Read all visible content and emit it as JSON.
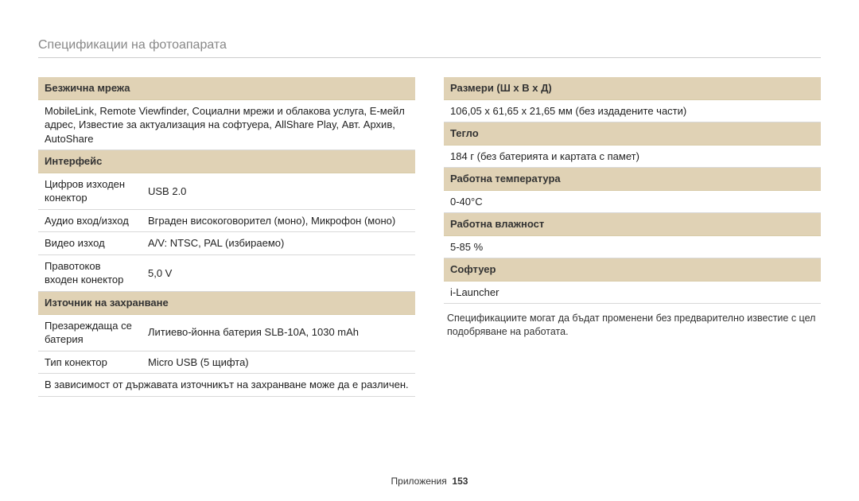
{
  "page_title": "Спецификации на фотоапарата",
  "colors": {
    "header_bg": "#e0d2b5",
    "border": "#d8d8d8",
    "title_color": "#888888",
    "text": "#222222"
  },
  "left": {
    "sections": [
      {
        "header": "Безжична мрежа",
        "rows": [
          {
            "full": "MobileLink, Remote Viewfinder, Социални мрежи и облакова услуга, Е-мейл адрес, Известие за актуализация на софтуера, AllShare Play, Авт. Архив, AutoShare"
          }
        ]
      },
      {
        "header": "Интерфейс",
        "rows": [
          {
            "label": "Цифров изходен конектор",
            "value": "USB 2.0"
          },
          {
            "label": "Аудио вход/изход",
            "value": "Вграден високоговорител (моно), Микрофон (моно)"
          },
          {
            "label": "Видео изход",
            "value": "A/V: NTSC, PAL (избираемо)"
          },
          {
            "label": "Правотоков входен конектор",
            "value": "5,0 V"
          }
        ]
      },
      {
        "header": "Източник на захранване",
        "rows": [
          {
            "label": "Презареждаща се батерия",
            "value": "Литиево-йонна батерия SLB-10A, 1030 mAh"
          },
          {
            "label": "Тип конектор",
            "value": "Micro USB (5 щифта)"
          },
          {
            "full": "В зависимост от държавата източникът на захранване може да е различен."
          }
        ]
      }
    ]
  },
  "right": {
    "sections": [
      {
        "header": "Размери (Ш x В x Д)",
        "rows": [
          {
            "full": "106,05 x 61,65 x 21,65 мм (без издадените части)"
          }
        ]
      },
      {
        "header": "Тегло",
        "rows": [
          {
            "full": "184 г (без батерията и картата с памет)"
          }
        ]
      },
      {
        "header": "Работна температура",
        "rows": [
          {
            "full": "0-40°C"
          }
        ]
      },
      {
        "header": "Работна влажност",
        "rows": [
          {
            "full": "5-85 %"
          }
        ]
      },
      {
        "header": "Софтуер",
        "rows": [
          {
            "full": "i-Launcher"
          }
        ]
      }
    ],
    "note": "Спецификациите могат да бъдат променени без предварително известие с цел подобряване на работата."
  },
  "footer": {
    "section": "Приложения",
    "page": "153"
  }
}
